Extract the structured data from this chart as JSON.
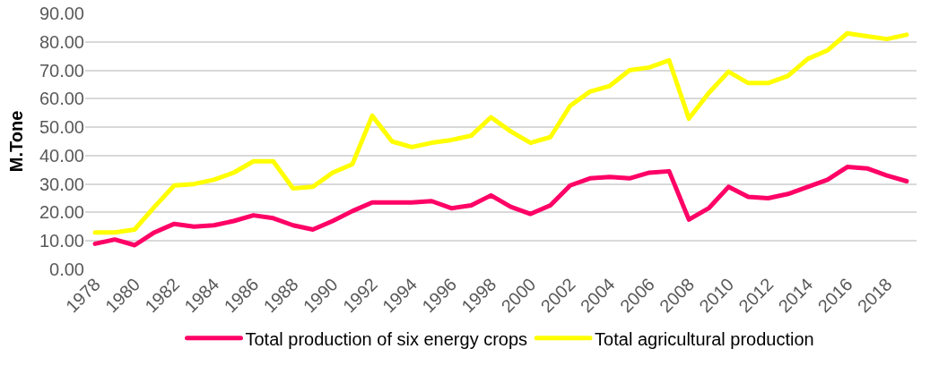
{
  "chart_data": {
    "type": "line",
    "ylabel": "M.Tone",
    "categories": [
      "1978",
      null,
      "1980",
      null,
      "1982",
      null,
      "1984",
      null,
      "1986",
      null,
      "1988",
      null,
      "1990",
      null,
      "1992",
      null,
      "1994",
      null,
      "1996",
      null,
      "1998",
      null,
      "2000",
      null,
      "2002",
      null,
      "2004",
      null,
      "2006",
      null,
      "2008",
      null,
      "2010",
      null,
      "2012",
      null,
      "2014",
      null,
      "2016",
      null,
      "2018",
      null
    ],
    "series": [
      {
        "name": "Total production of six energy crops",
        "color": "#ff0066",
        "values": [
          9,
          10.5,
          8.5,
          13,
          16,
          15,
          15.5,
          17,
          19,
          18,
          15.5,
          14,
          17,
          20.5,
          23.5,
          23.5,
          23.5,
          24,
          21.5,
          22.5,
          26,
          22,
          19.5,
          22.5,
          29.5,
          32,
          32.5,
          32,
          34,
          34.5,
          17.5,
          21.5,
          29,
          25.5,
          25,
          26.5,
          29,
          31.5,
          36,
          35.5,
          33,
          31
        ]
      },
      {
        "name": "Total agricultural production",
        "color": "#ffff00",
        "values": [
          13,
          13,
          14,
          22,
          29.5,
          30,
          31.5,
          34,
          38,
          38,
          28.5,
          29,
          34,
          37,
          54,
          45,
          43,
          44.5,
          45.5,
          47,
          53.5,
          48.5,
          44.5,
          46.5,
          57.5,
          62.5,
          64.5,
          70,
          71,
          73.5,
          53,
          62,
          69.5,
          65.5,
          65.5,
          68,
          74,
          77,
          83,
          82,
          81,
          82.5
        ]
      }
    ],
    "ylim": [
      0,
      90
    ],
    "yticks": [
      {
        "value": 0,
        "label": "0.00"
      },
      {
        "value": 10,
        "label": "10.00"
      },
      {
        "value": 20,
        "label": "20.00"
      },
      {
        "value": 30,
        "label": "30.00"
      },
      {
        "value": 40,
        "label": "40.00"
      },
      {
        "value": 50,
        "label": "50.00"
      },
      {
        "value": 60,
        "label": "60.00"
      },
      {
        "value": 70,
        "label": "70.00"
      },
      {
        "value": 80,
        "label": "80.00"
      },
      {
        "value": 90,
        "label": "90.00"
      }
    ],
    "grid": "y",
    "legend": "bottom",
    "marker": "none",
    "line_style": "solid"
  }
}
